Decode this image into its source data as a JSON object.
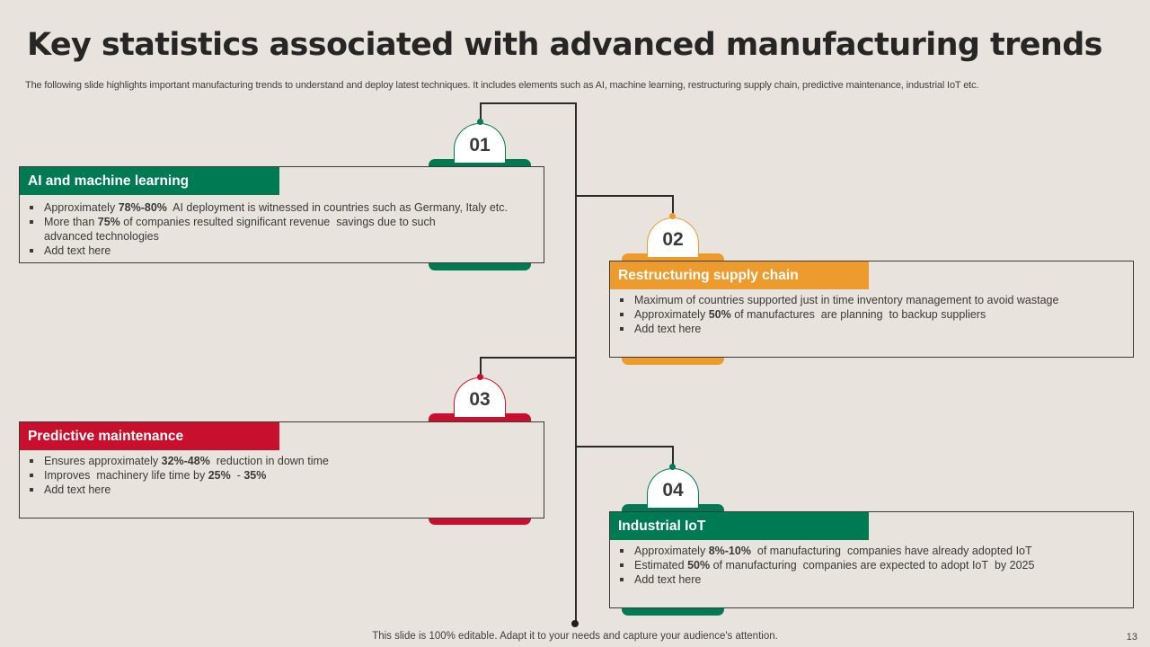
{
  "title": "Key statistics associated with advanced manufacturing trends",
  "subtitle": "The following slide highlights important manufacturing trends to understand and deploy latest techniques. It includes elements such as AI, machine learning, restructuring supply chain, predictive maintenance, industrial IoT etc.",
  "colors": {
    "green": "#007a52",
    "orange": "#ee9b2d",
    "red": "#c8102e",
    "background": "#e8e3dc"
  },
  "trends": [
    {
      "number": "01",
      "heading": "AI and machine learning",
      "color": "green",
      "points": [
        "Approximately 78%-80%  AI deployment is witnessed in countries such as Germany, Italy etc.",
        "More than 75% of companies resulted significant revenue  savings due to such",
        "advanced  technologies",
        "Add text here"
      ]
    },
    {
      "number": "02",
      "heading": "Restructuring supply chain",
      "color": "orange",
      "points": [
        "Maximum of countries supported just in time inventory  management  to avoid  wastage",
        "Approximately 50% of manufactures  are planning  to backup suppliers",
        "Add text here"
      ]
    },
    {
      "number": "03",
      "heading": "Predictive maintenance",
      "color": "red",
      "points": [
        "Ensures approximately 32%-48%  reduction in down time",
        "Improves  machinery life time by 25%  - 35%",
        "Add text here"
      ]
    },
    {
      "number": "04",
      "heading": "Industrial IoT",
      "color": "green",
      "points": [
        "Approximately 8%-10%  of manufacturing  companies have already adopted IoT",
        "Estimated 50% of manufacturing  companies are expected to adopt IoT  by 2025",
        "Add text here"
      ]
    }
  ],
  "footer": "This slide is 100% editable. Adapt it to your needs and capture your audience's attention.",
  "page_number": "13"
}
